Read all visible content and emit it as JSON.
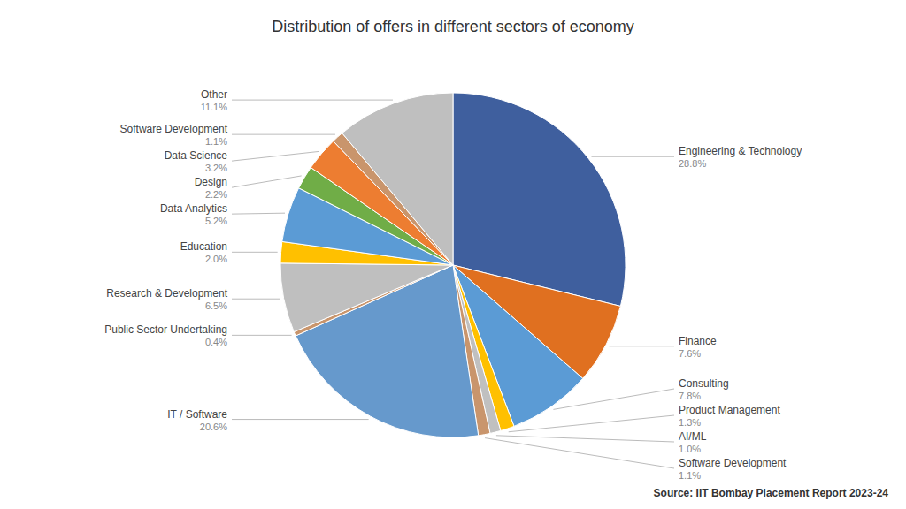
{
  "chart_data": {
    "type": "pie",
    "title": "Distribution of offers in different sectors of economy",
    "annotations": [
      "Source: IIT Bombay Placement Report 2023-24"
    ],
    "categories": [
      "Engineering & Technology",
      "Finance",
      "Consulting",
      "Product Management",
      "AI/ML",
      "Software Development",
      "IT / Software",
      "Public Sector Undertaking",
      "Research & Development",
      "Education",
      "Data Analytics",
      "Design",
      "Data Science",
      "Software Development",
      "Other"
    ],
    "values": [
      28.8,
      7.6,
      7.8,
      1.3,
      1.0,
      1.1,
      20.6,
      0.4,
      6.5,
      2.0,
      5.2,
      2.2,
      3.2,
      1.1,
      11.1
    ],
    "value_labels": [
      "28.8%",
      "7.6%",
      "7.8%",
      "1.3%",
      "1.0%",
      "1.1%",
      "20.6%",
      "0.4%",
      "6.5%",
      "2.0%",
      "5.2%",
      "2.2%",
      "3.2%",
      "1.1%",
      "11.1%"
    ],
    "colors": [
      "#3F5F9E",
      "#E07020",
      "#5B9BD5",
      "#FFC000",
      "#C0C0C0",
      "#C9956C",
      "#6699CC",
      "#C9956C",
      "#BFBFBF",
      "#FFC000",
      "#5B9BD5",
      "#70AD47",
      "#ED7D31",
      "#C9956C",
      "#BFBFBF"
    ],
    "data_labels": true
  }
}
